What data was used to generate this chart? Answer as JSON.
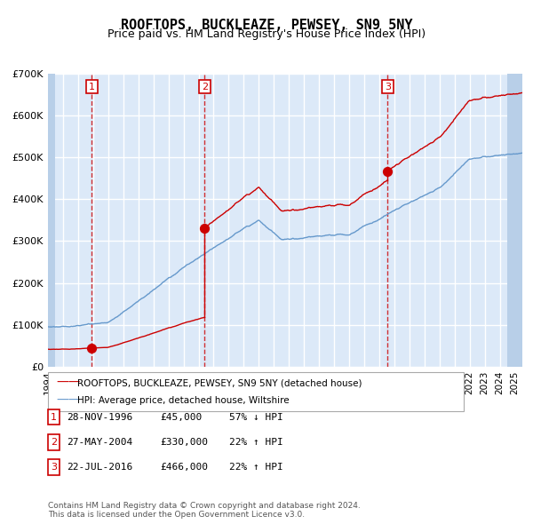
{
  "title": "ROOFTOPS, BUCKLEAZE, PEWSEY, SN9 5NY",
  "subtitle": "Price paid vs. HM Land Registry's House Price Index (HPI)",
  "legend_label_red": "ROOFTOPS, BUCKLEAZE, PEWSEY, SN9 5NY (detached house)",
  "legend_label_blue": "HPI: Average price, detached house, Wiltshire",
  "footnote": "Contains HM Land Registry data © Crown copyright and database right 2024.\nThis data is licensed under the Open Government Licence v3.0.",
  "transactions": [
    {
      "num": 1,
      "date": "28-NOV-1996",
      "price": 45000,
      "pct": "57%",
      "dir": "↓",
      "year_x": 1996.91
    },
    {
      "num": 2,
      "date": "27-MAY-2004",
      "price": 330000,
      "pct": "22%",
      "dir": "↑",
      "year_x": 2004.41
    },
    {
      "num": 3,
      "date": "22-JUL-2016",
      "price": 466000,
      "pct": "22%",
      "dir": "↑",
      "year_x": 2016.56
    }
  ],
  "ylim": [
    0,
    700000
  ],
  "xlim_start": 1994.0,
  "xlim_end": 2025.5,
  "background_color": "#dce9f8",
  "plot_bg_color": "#dce9f8",
  "hatch_color": "#b8cfe8",
  "grid_color": "#ffffff",
  "red_color": "#cc0000",
  "blue_color": "#6699cc",
  "dashed_color": "#cc0000"
}
